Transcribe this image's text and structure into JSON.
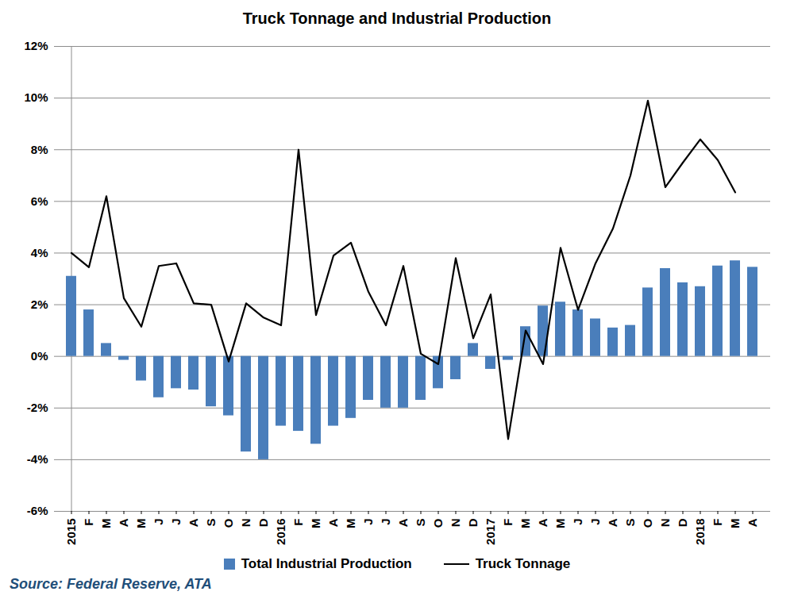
{
  "chart_data": {
    "type": "bar",
    "title": "Truck Tonnage and Industrial Production",
    "caption": "Source: Federal Reserve, ATA",
    "categories": [
      "2015",
      "F",
      "M",
      "A",
      "M",
      "J",
      "J",
      "A",
      "S",
      "O",
      "N",
      "D",
      "2016",
      "F",
      "M",
      "A",
      "M",
      "J",
      "J",
      "A",
      "S",
      "O",
      "N",
      "D",
      "2017",
      "F",
      "M",
      "A",
      "M",
      "J",
      "J",
      "A",
      "S",
      "O",
      "N",
      "D",
      "2018",
      "F",
      "M",
      "A"
    ],
    "series": [
      {
        "name": "Total Industrial Production",
        "type": "bar",
        "color": "#4a7ebb",
        "values": [
          3.1,
          1.8,
          0.5,
          -0.15,
          -0.95,
          -1.6,
          -1.25,
          -1.3,
          -1.95,
          -2.3,
          -3.7,
          -4.0,
          -2.7,
          -2.9,
          -3.4,
          -2.7,
          -2.4,
          -1.7,
          -2.0,
          -2.0,
          -1.7,
          -1.25,
          -0.9,
          0.5,
          -0.5,
          -0.15,
          1.15,
          1.95,
          2.1,
          1.8,
          1.45,
          1.1,
          1.2,
          2.65,
          3.4,
          2.85,
          2.7,
          3.5,
          3.7,
          3.45
        ]
      },
      {
        "name": "Truck Tonnage",
        "type": "line",
        "color": "#000000",
        "values": [
          4.0,
          3.45,
          6.2,
          2.25,
          1.15,
          3.5,
          3.6,
          2.05,
          2.0,
          -0.2,
          2.05,
          1.5,
          1.2,
          8.0,
          1.6,
          3.9,
          4.4,
          2.5,
          1.2,
          3.5,
          0.1,
          -0.3,
          3.8,
          0.7,
          2.4,
          -3.2,
          1.0,
          -0.3,
          4.2,
          1.8,
          3.6,
          4.95,
          7.0,
          9.9,
          6.55,
          7.5,
          8.4,
          7.6,
          6.35,
          null
        ]
      }
    ],
    "ylim": [
      -6,
      12
    ],
    "yticks": [
      {
        "value": -6,
        "label": "-6%"
      },
      {
        "value": -4,
        "label": "-4%"
      },
      {
        "value": -2,
        "label": "-2%"
      },
      {
        "value": 0,
        "label": "0%"
      },
      {
        "value": 2,
        "label": "2%"
      },
      {
        "value": 4,
        "label": "4%"
      },
      {
        "value": 6,
        "label": "6%"
      },
      {
        "value": 8,
        "label": "8%"
      },
      {
        "value": 10,
        "label": "10%"
      },
      {
        "value": 12,
        "label": "12%"
      }
    ],
    "grid": true,
    "legend": "bottom"
  }
}
